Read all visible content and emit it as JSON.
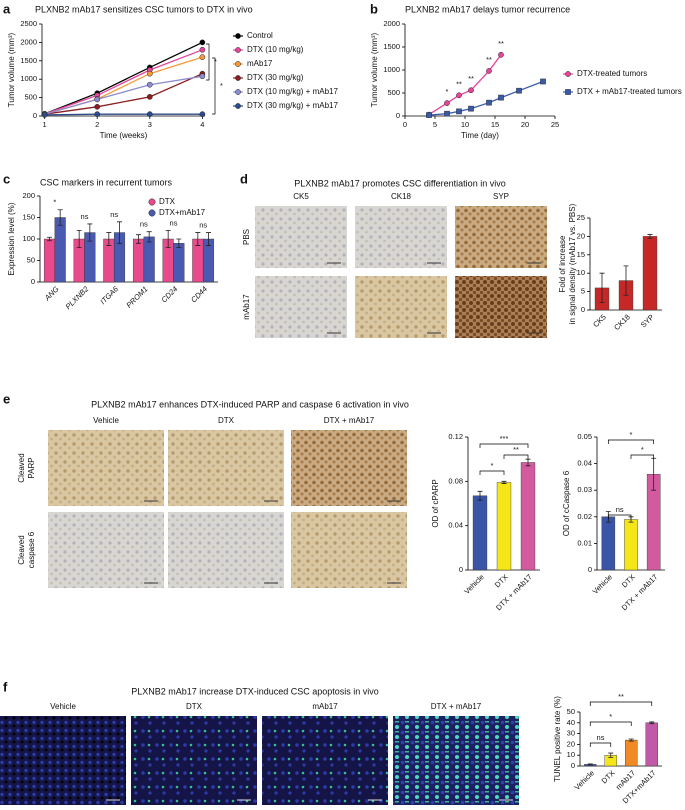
{
  "panels": [
    "a",
    "b",
    "c",
    "d",
    "e",
    "f"
  ],
  "images": {
    "d": {
      "title": "PLXNB2 mAb17 promotes CSC differentiation in vivo",
      "columns": [
        "CK5",
        "CK18",
        "SYP"
      ],
      "rows": [
        [
          "PBS"
        ],
        [
          "mAb17"
        ]
      ]
    },
    "e": {
      "title": "PLXNB2 mAb17 enhances DTX-induced PARP and caspase 6 activation in vivo",
      "columns": [
        "Vehicle",
        "DTX",
        "DTX + mAb17"
      ],
      "rows": [
        [
          "Cleaved",
          "PARP"
        ],
        [
          "Cleaved",
          "caspase 6"
        ]
      ]
    },
    "f": {
      "title": "PLXNB2 mAb17 increase DTX-induced CSC apoptosis in vivo",
      "columns": [
        "Vehicle",
        "DTX",
        "mAb17",
        "DTX + mAb17"
      ],
      "rows": []
    }
  },
  "chart_data": [
    {
      "type": "line",
      "title": "PLXNB2 mAb17 sensitizes CSC tumors to DTX in vivo",
      "xlabel": "Time (weeks)",
      "ylabel": "Tumor volume (mm³)",
      "x": [
        1,
        2,
        3,
        4
      ],
      "xlim": [
        0.95,
        4.05
      ],
      "xticks": [
        1,
        2,
        3,
        4
      ],
      "ylim": [
        0,
        2500
      ],
      "yticks": [
        0,
        500,
        1000,
        1500,
        2000,
        2500
      ],
      "legend": "right",
      "series": [
        {
          "name": "Control",
          "color": "#000000",
          "values": [
            60,
            620,
            1320,
            2000
          ]
        },
        {
          "name": "DTX (10 mg/kg)",
          "color": "#e8449a",
          "values": [
            55,
            560,
            1250,
            1800
          ]
        },
        {
          "name": "mAb17",
          "color": "#f59a3c",
          "values": [
            50,
            460,
            1150,
            1600
          ]
        },
        {
          "name": "DTX (30 mg/kg)",
          "color": "#8b1e1e",
          "values": [
            50,
            250,
            520,
            1150
          ]
        },
        {
          "name": "DTX (10 mg/kg) + mAb17",
          "color": "#8c8cd0",
          "values": [
            50,
            450,
            850,
            1080
          ]
        },
        {
          "name": "DTX (30 mg/kg) + mAb17",
          "color": "#2c4a8c",
          "values": [
            30,
            50,
            50,
            50
          ]
        }
      ],
      "annotations": [
        "*",
        "*"
      ]
    },
    {
      "type": "line",
      "title": "PLXNB2 mAb17 delays tumor recurrence",
      "xlabel": "Time (day)",
      "ylabel": "Tumor volume (mm³)",
      "xlim": [
        0,
        25
      ],
      "xticks": [
        0,
        5,
        10,
        15,
        20,
        25
      ],
      "ylim": [
        0,
        2000
      ],
      "yticks": [
        0,
        500,
        1000,
        1500,
        2000
      ],
      "legend": "right",
      "series": [
        {
          "name": "DTX-treated tumors",
          "color": "#e8449a",
          "marker": "circle",
          "x": [
            4,
            7,
            9,
            11,
            14,
            16
          ],
          "values": [
            30,
            280,
            450,
            560,
            980,
            1330
          ],
          "point_labels": [
            null,
            "*",
            "**",
            "**",
            "**",
            "**"
          ]
        },
        {
          "name": "DTX + mAb17-treated tumors",
          "color": "#3a5aa8",
          "marker": "square",
          "x": [
            4,
            7,
            9,
            11,
            14,
            16,
            19,
            23
          ],
          "values": [
            20,
            50,
            100,
            160,
            290,
            400,
            550,
            750
          ]
        }
      ]
    },
    {
      "type": "bar",
      "title": "CSC markers in recurrent tumors",
      "ylabel": "Expression level (%)",
      "categories": [
        "ANG",
        "PLXNB2",
        "ITGA6",
        "PROM1",
        "CD24",
        "CD44"
      ],
      "ylim": [
        0,
        200
      ],
      "yticks": [
        0,
        50,
        100,
        150,
        200
      ],
      "legend": "top-right",
      "series": [
        {
          "name": "DTX",
          "color": "#e84a8c",
          "values": [
            100,
            100,
            100,
            100,
            100,
            100
          ],
          "errors": [
            4,
            20,
            15,
            10,
            20,
            15
          ]
        },
        {
          "name": "DTX+mAb17",
          "color": "#4a5ab0",
          "values": [
            150,
            115,
            115,
            105,
            90,
            100
          ],
          "errors": [
            18,
            20,
            25,
            12,
            10,
            15
          ]
        }
      ],
      "annotations": [
        "*",
        "ns",
        "ns",
        "ns",
        "ns",
        "ns"
      ]
    },
    {
      "type": "bar",
      "ylabel": [
        "Fold of increase",
        "in signal density (mAb17 vs. PBS)"
      ],
      "categories": [
        "CK5",
        "CK18",
        "SYP"
      ],
      "values": [
        6,
        8,
        20
      ],
      "errors": [
        4,
        4,
        0.5
      ],
      "color": "#c62828",
      "ylim": [
        0,
        25
      ],
      "yticks": [
        0,
        5,
        10,
        15,
        20,
        25
      ]
    },
    {
      "type": "bar",
      "ylabel": "OD of cPARP",
      "categories": [
        "Vehicle",
        "DTX",
        "DTX + mAb17"
      ],
      "values": [
        0.067,
        0.079,
        0.097
      ],
      "errors": [
        0.004,
        0.001,
        0.003
      ],
      "colors": [
        "#3a55a8",
        "#f5e61a",
        "#d45aa0"
      ],
      "ylim": [
        0,
        0.12
      ],
      "yticks": [
        0,
        0.04,
        0.08,
        0.12
      ],
      "annotations": [
        "***",
        "**",
        "*"
      ]
    },
    {
      "type": "bar",
      "ylabel": "OD of cCaspase 6",
      "categories": [
        "Vehicle",
        "DTX",
        "DTX + mAb17"
      ],
      "values": [
        0.02,
        0.019,
        0.036
      ],
      "errors": [
        0.002,
        0.001,
        0.006
      ],
      "colors": [
        "#3a55a8",
        "#f5e61a",
        "#d45aa0"
      ],
      "ylim": [
        0,
        0.05
      ],
      "yticks": [
        0,
        0.01,
        0.02,
        0.03,
        0.04,
        0.05
      ],
      "annotations": [
        "*",
        "*",
        "ns"
      ]
    },
    {
      "type": "bar",
      "ylabel": "TUNEL positive rate (%)",
      "categories": [
        "Vehicle",
        "DTX",
        "mAb17",
        "DTX+mAb17"
      ],
      "values": [
        1.5,
        10,
        24,
        40
      ],
      "errors": [
        0.5,
        2,
        1,
        0.8
      ],
      "colors": [
        "#3a55a8",
        "#f5e61a",
        "#f08a24",
        "#c05aa8"
      ],
      "ylim": [
        0,
        50
      ],
      "yticks": [
        0,
        10,
        20,
        30,
        40,
        50
      ],
      "annotations": [
        "**",
        "*",
        "ns"
      ]
    }
  ]
}
